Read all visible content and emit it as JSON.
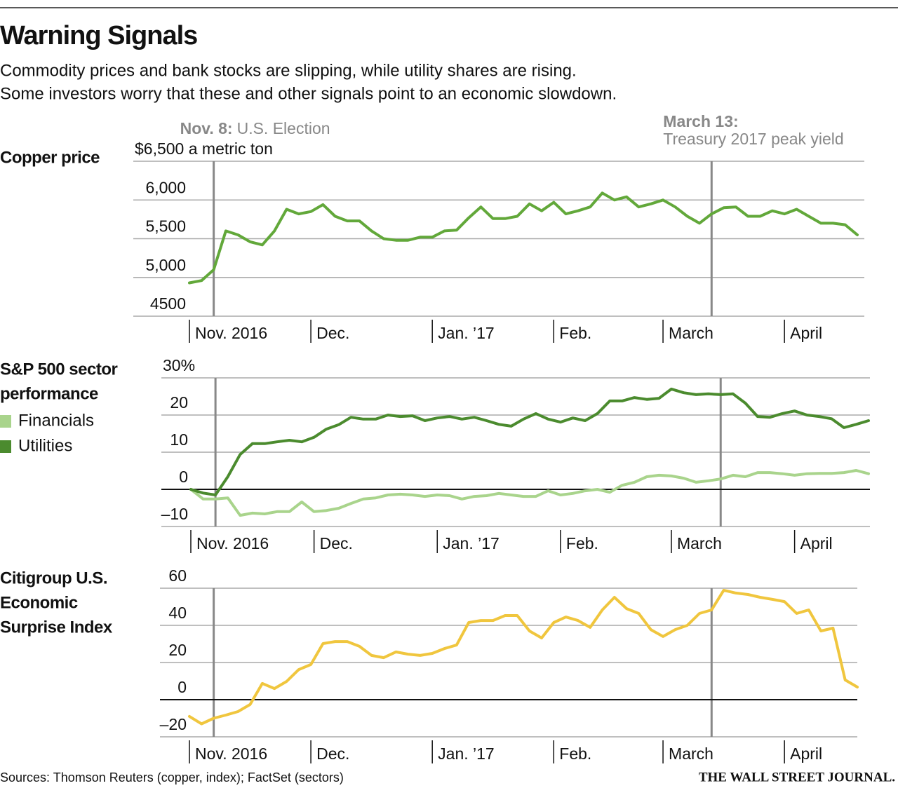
{
  "title": "Warning Signals",
  "subtitle": [
    "Commodity prices and bank stocks are slipping, while utility shares are rising.",
    "Some investors worry that these and other signals point to an economic slowdown."
  ],
  "source": "Sources: Thomson Reuters (copper, index); FactSet (sectors)",
  "credit": "THE WALL STREET JOURNAL.",
  "chart_data": [
    {
      "type": "line",
      "label": [
        "Copper price"
      ],
      "categories": [
        "Nov. 2016",
        null,
        null,
        null,
        null,
        null,
        null,
        null,
        null,
        null,
        "Dec.",
        null,
        null,
        null,
        null,
        null,
        null,
        null,
        null,
        null,
        "Jan. ’17",
        null,
        null,
        null,
        null,
        null,
        null,
        null,
        null,
        null,
        "Feb.",
        null,
        null,
        null,
        null,
        null,
        null,
        null,
        null,
        "March",
        null,
        null,
        null,
        null,
        null,
        null,
        null,
        null,
        null,
        "April",
        null,
        null,
        null,
        null,
        null,
        null
      ],
      "annotations": [
        {
          "label": "Nov. 8:",
          "text": "U.S. Election",
          "at": 2
        },
        {
          "label": "March 13:",
          "text": "Treasury 2017 peak yield",
          "at": 43
        }
      ],
      "ylim": [
        4500,
        6500
      ],
      "yticks": [
        4500,
        {
          "value": 5000,
          "label": "5,000"
        },
        {
          "value": 5500,
          "label": "5,500"
        },
        {
          "value": 6000,
          "label": "6,000"
        },
        {
          "value": 6500,
          "label": "$6,500 a metric ton"
        }
      ],
      "grid": true,
      "series": [
        {
          "color": "#62a83a",
          "values": [
            4930,
            4960,
            5100,
            5600,
            5550,
            5460,
            5420,
            5600,
            5880,
            5820,
            5850,
            5940,
            5790,
            5730,
            5730,
            5600,
            5500,
            5480,
            5480,
            5520,
            5520,
            5600,
            5610,
            5770,
            5910,
            5760,
            5760,
            5790,
            5950,
            5860,
            5970,
            5820,
            5860,
            5910,
            6090,
            6000,
            6040,
            5910,
            5950,
            6000,
            5910,
            5790,
            5700,
            5820,
            5900,
            5910,
            5790,
            5790,
            5860,
            5820,
            5880,
            5790,
            5700,
            5700,
            5680,
            5550
          ]
        }
      ]
    },
    {
      "type": "line",
      "label": [
        "S&P 500 sector",
        "performance"
      ],
      "categories": [
        "Nov. 2016",
        null,
        null,
        null,
        null,
        null,
        null,
        null,
        null,
        null,
        "Dec.",
        null,
        null,
        null,
        null,
        null,
        null,
        null,
        null,
        null,
        "Jan. ’17",
        null,
        null,
        null,
        null,
        null,
        null,
        null,
        null,
        null,
        "Feb.",
        null,
        null,
        null,
        null,
        null,
        null,
        null,
        null,
        "March",
        null,
        null,
        null,
        null,
        null,
        null,
        null,
        null,
        null,
        "April",
        null,
        null,
        null,
        null,
        null,
        null
      ],
      "ylim": [
        -10,
        30
      ],
      "yticks": [
        {
          "value": -10,
          "label": "–10"
        },
        0,
        10,
        20,
        {
          "value": 30,
          "label": "30%"
        }
      ],
      "grid": true,
      "series": [
        {
          "name": "Financials",
          "color": "#a9d48c",
          "values": [
            0,
            -2.6,
            -2.6,
            -2.3,
            -7,
            -6.4,
            -6.6,
            -6,
            -6,
            -3.4,
            -6,
            -5.7,
            -5.1,
            -3.8,
            -2.6,
            -2.3,
            -1.5,
            -1.3,
            -1.5,
            -1.9,
            -1.5,
            -1.7,
            -2.6,
            -1.9,
            -1.7,
            -1.1,
            -1.5,
            -1.9,
            -1.9,
            -0.4,
            -1.5,
            -1.1,
            -0.4,
            0,
            -0.8,
            1.1,
            1.9,
            3.4,
            3.8,
            3.6,
            3,
            1.9,
            2.3,
            2.8,
            3.8,
            3.4,
            4.5,
            4.5,
            4.2,
            3.8,
            4.2,
            4.3,
            4.3,
            4.5,
            5.1,
            4.2
          ]
        },
        {
          "name": "Utilities",
          "color": "#4b8b2e",
          "values": [
            0,
            -1,
            -1.5,
            3.4,
            9.4,
            12.3,
            12.3,
            12.8,
            13.2,
            12.8,
            14,
            16.2,
            17.4,
            19.4,
            18.9,
            18.9,
            20,
            19.6,
            19.8,
            18.5,
            19.2,
            19.6,
            18.9,
            19.4,
            18.5,
            17.5,
            17,
            18.9,
            20.4,
            18.9,
            18.1,
            19.2,
            18.5,
            20.4,
            23.8,
            23.8,
            24.7,
            24.2,
            24.5,
            27,
            26,
            25.5,
            25.7,
            25.5,
            25.7,
            23.2,
            19.6,
            19.4,
            20.4,
            21.1,
            20,
            19.6,
            19,
            16.6,
            17.5,
            18.5
          ]
        }
      ]
    },
    {
      "type": "line",
      "label": [
        "Citigroup U.S.",
        "Economic",
        "Surprise Index"
      ],
      "categories": [
        "Nov. 2016",
        null,
        null,
        null,
        null,
        null,
        null,
        null,
        null,
        null,
        "Dec.",
        null,
        null,
        null,
        null,
        null,
        null,
        null,
        null,
        null,
        "Jan. ’17",
        null,
        null,
        null,
        null,
        null,
        null,
        null,
        null,
        null,
        "Feb.",
        null,
        null,
        null,
        null,
        null,
        null,
        null,
        null,
        "March",
        null,
        null,
        null,
        null,
        null,
        null,
        null,
        null,
        null,
        "April",
        null,
        null,
        null,
        null,
        null,
        null
      ],
      "ylim": [
        -20,
        60
      ],
      "yticks": [
        {
          "value": -20,
          "label": "–20"
        },
        0,
        20,
        40,
        60
      ],
      "grid": true,
      "series": [
        {
          "color": "#f0c63e",
          "values": [
            -9,
            -13,
            -10,
            -8.3,
            -6.4,
            -2.6,
            8.7,
            6,
            9.8,
            16.2,
            18.9,
            30.2,
            31.3,
            31.3,
            28.7,
            23.8,
            22.6,
            25.7,
            24.5,
            23.8,
            24.9,
            27.5,
            29.4,
            41.5,
            42.6,
            42.6,
            45.3,
            45.3,
            37,
            33.2,
            41.5,
            44.5,
            42.6,
            38.9,
            48.3,
            55.1,
            49,
            46.4,
            37.7,
            34,
            37.7,
            40,
            46.4,
            48.3,
            58.9,
            57.4,
            56.6,
            55.1,
            54,
            52.8,
            46.4,
            48.3,
            37,
            38.5,
            10.6,
            6.8
          ]
        }
      ]
    }
  ]
}
